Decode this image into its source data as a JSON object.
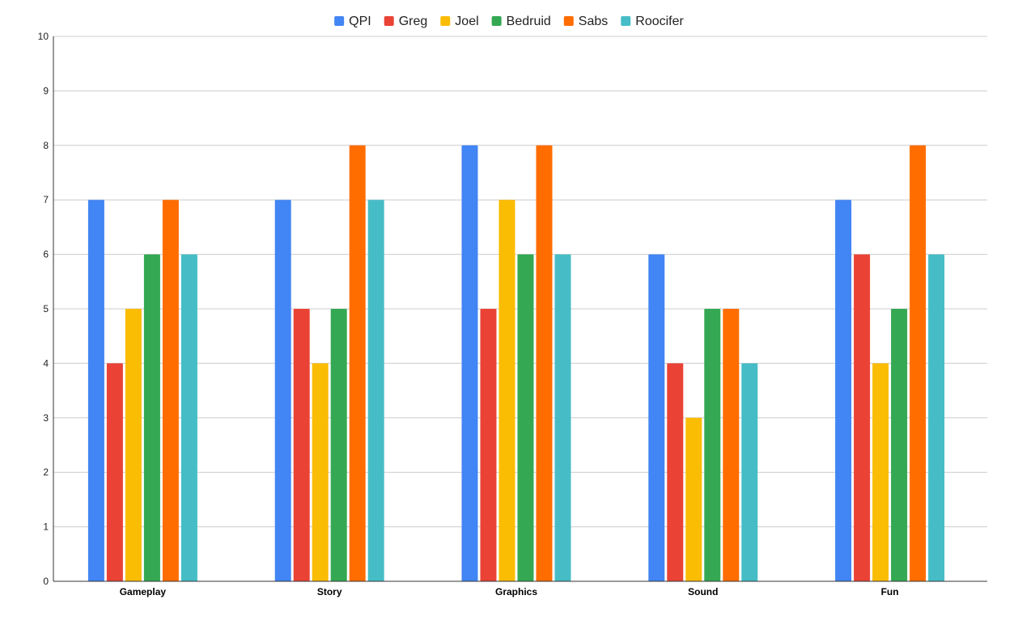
{
  "chart_data": {
    "type": "bar",
    "categories": [
      "Gameplay",
      "Story",
      "Graphics",
      "Sound",
      "Fun"
    ],
    "series": [
      {
        "name": "QPI",
        "color": "#4285F4",
        "values": [
          7,
          7,
          8,
          6,
          7
        ]
      },
      {
        "name": "Greg",
        "color": "#EA4335",
        "values": [
          4,
          5,
          5,
          4,
          6
        ]
      },
      {
        "name": "Joel",
        "color": "#FBBC04",
        "values": [
          5,
          4,
          7,
          3,
          4
        ]
      },
      {
        "name": "Bedruid",
        "color": "#34A853",
        "values": [
          6,
          5,
          6,
          5,
          5
        ]
      },
      {
        "name": "Sabs",
        "color": "#FF6D01",
        "values": [
          7,
          8,
          8,
          5,
          8
        ]
      },
      {
        "name": "Roocifer",
        "color": "#46BDC6",
        "values": [
          6,
          7,
          6,
          4,
          6
        ]
      }
    ],
    "yticks": [
      "0",
      "1",
      "2",
      "3",
      "4",
      "5",
      "6",
      "7",
      "8",
      "9",
      "10"
    ],
    "ylim": [
      0,
      10
    ],
    "grid": true,
    "legend_position": "top-center"
  }
}
